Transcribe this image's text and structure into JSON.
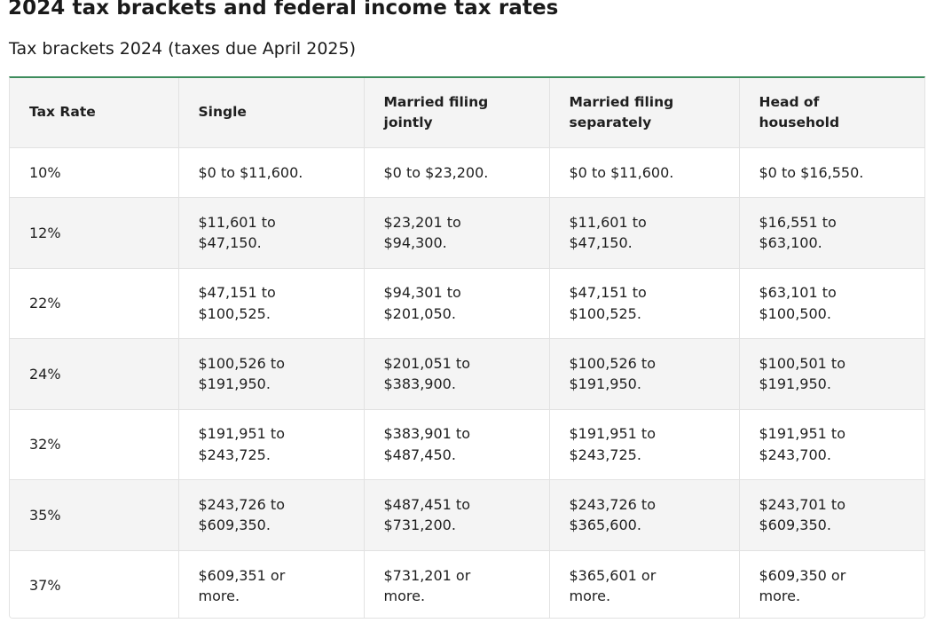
{
  "page": {
    "title": "2024 tax brackets and federal income tax rates",
    "subtitle": "Tax brackets 2024 (taxes due April 2025)"
  },
  "table": {
    "headers": [
      [
        "Tax Rate"
      ],
      [
        "Single"
      ],
      [
        "Married filing",
        "jointly"
      ],
      [
        "Married filing",
        "separately"
      ],
      [
        "Head of",
        "household"
      ]
    ],
    "rows": [
      {
        "rate": "10%",
        "single": [
          "$0 to $11,600."
        ],
        "married_jointly": [
          "$0 to $23,200."
        ],
        "married_separately": [
          "$0 to $11,600."
        ],
        "head_of_household": [
          "$0 to $16,550."
        ]
      },
      {
        "rate": "12%",
        "single": [
          "$11,601 to",
          "$47,150."
        ],
        "married_jointly": [
          "$23,201 to",
          "$94,300."
        ],
        "married_separately": [
          "$11,601 to",
          "$47,150."
        ],
        "head_of_household": [
          "$16,551 to",
          "$63,100."
        ]
      },
      {
        "rate": "22%",
        "single": [
          "$47,151 to",
          "$100,525."
        ],
        "married_jointly": [
          "$94,301 to",
          "$201,050."
        ],
        "married_separately": [
          "$47,151 to",
          "$100,525."
        ],
        "head_of_household": [
          "$63,101 to",
          "$100,500."
        ]
      },
      {
        "rate": "24%",
        "single": [
          "$100,526 to",
          "$191,950."
        ],
        "married_jointly": [
          "$201,051 to",
          "$383,900."
        ],
        "married_separately": [
          "$100,526 to",
          "$191,950."
        ],
        "head_of_household": [
          "$100,501 to",
          "$191,950."
        ]
      },
      {
        "rate": "32%",
        "single": [
          "$191,951 to",
          "$243,725."
        ],
        "married_jointly": [
          "$383,901 to",
          "$487,450."
        ],
        "married_separately": [
          "$191,951 to",
          "$243,725."
        ],
        "head_of_household": [
          "$191,951 to",
          "$243,700."
        ]
      },
      {
        "rate": "35%",
        "single": [
          "$243,726 to",
          "$609,350."
        ],
        "married_jointly": [
          "$487,451 to",
          "$731,200."
        ],
        "married_separately": [
          "$243,726 to",
          "$365,600."
        ],
        "head_of_household": [
          "$243,701 to",
          "$609,350."
        ]
      },
      {
        "rate": "37%",
        "single": [
          "$609,351 or",
          "more."
        ],
        "married_jointly": [
          "$731,201 or",
          "more."
        ],
        "married_separately": [
          "$365,601 or",
          "more."
        ],
        "head_of_household": [
          "$609,350 or",
          "more."
        ]
      }
    ]
  },
  "colors": {
    "accent_border": "#3d8c5c",
    "row_stripe": "#f4f4f4",
    "grid_line": "#e2e2e2",
    "text": "#1f1f1f"
  }
}
